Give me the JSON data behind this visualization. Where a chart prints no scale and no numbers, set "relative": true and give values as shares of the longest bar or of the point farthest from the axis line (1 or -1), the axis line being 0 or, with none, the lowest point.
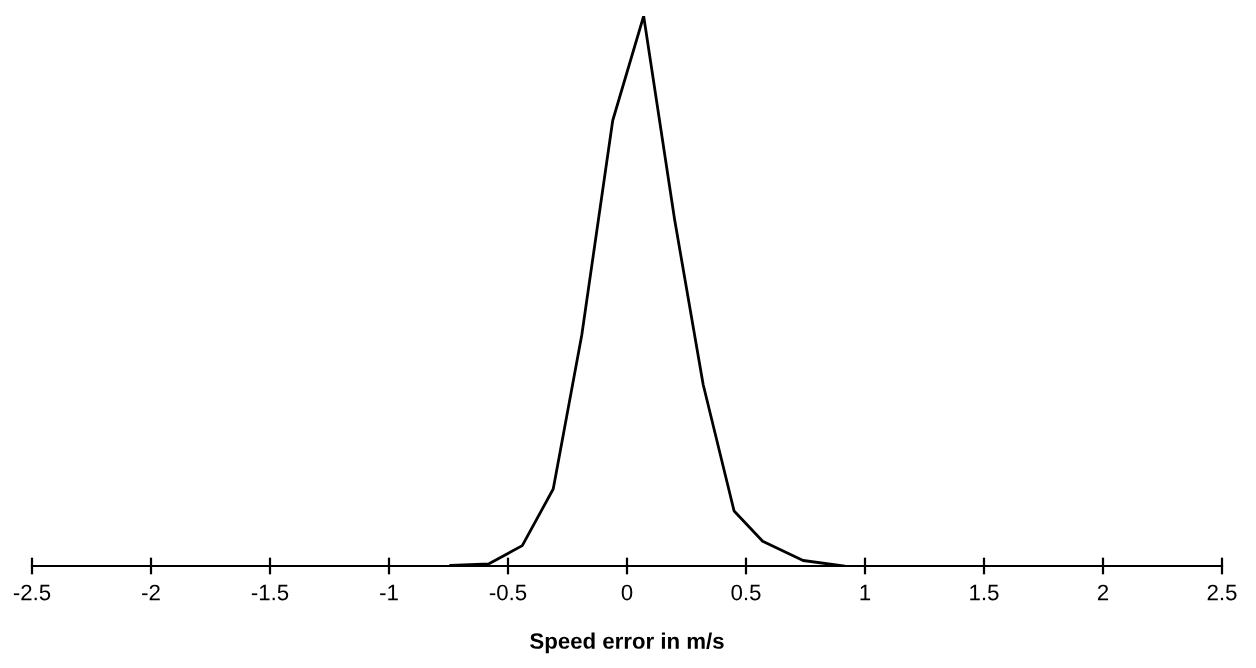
{
  "chart_data": {
    "type": "line",
    "xlabel": "Speed error in m/s",
    "relative": true,
    "xlim": [
      -2.5,
      2.5
    ],
    "xticks": [
      {
        "value": -2.5,
        "label": "-2.5"
      },
      {
        "value": -2,
        "label": "-2"
      },
      {
        "value": -1.5,
        "label": "-1.5"
      },
      {
        "value": -1,
        "label": "-1"
      },
      {
        "value": -0.5,
        "label": "-0.5"
      },
      0,
      0.5,
      1,
      1.5,
      2,
      2.5
    ],
    "grid": false,
    "legend": false,
    "marker": "none",
    "line_style": "solid",
    "series": [
      {
        "color": "#000000",
        "x": [
          -0.74,
          -0.58,
          -0.44,
          -0.31,
          -0.19,
          -0.06,
          0.07,
          0.2,
          0.32,
          0.45,
          0.57,
          0.74,
          0.91
        ],
        "values": [
          0.001,
          0.004,
          0.037,
          0.14,
          0.42,
          0.81,
          1,
          0.63,
          0.33,
          0.1,
          0.045,
          0.01,
          0
        ]
      }
    ]
  }
}
